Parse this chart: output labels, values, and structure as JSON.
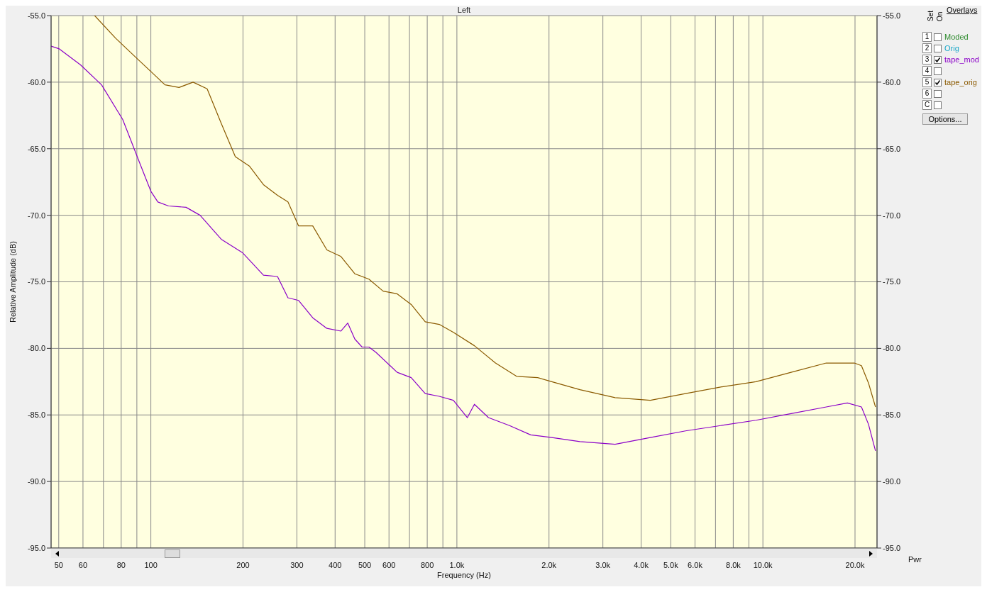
{
  "chart_data": {
    "type": "line",
    "title": "Left",
    "xlabel": "Frequency (Hz)",
    "ylabel": "Relative Amplitude (dB)",
    "log": "x",
    "grid": true,
    "legend": "right",
    "marker": "none",
    "line_style": "solid",
    "xlim": [
      47.2,
      23600
    ],
    "xticks": [
      50,
      60,
      {
        "value": 70,
        "label": null
      },
      80,
      {
        "value": 90,
        "label": null
      },
      100,
      200,
      300,
      400,
      500,
      600,
      {
        "value": 700,
        "label": null
      },
      800,
      {
        "value": 900,
        "label": null
      },
      {
        "value": 1000,
        "label": "1.0k"
      },
      {
        "value": 2000,
        "label": "2.0k"
      },
      {
        "value": 3000,
        "label": "3.0k"
      },
      {
        "value": 4000,
        "label": "4.0k"
      },
      {
        "value": 5000,
        "label": "5.0k"
      },
      {
        "value": 6000,
        "label": "6.0k"
      },
      {
        "value": 7000,
        "label": null
      },
      {
        "value": 8000,
        "label": "8.0k"
      },
      {
        "value": 9000,
        "label": null
      },
      {
        "value": 10000,
        "label": "10.0k"
      },
      {
        "value": 20000,
        "label": "20.0k"
      }
    ],
    "ylim": [
      -95,
      -55
    ],
    "yticks": [
      {
        "value": -95,
        "label": "-95.0"
      },
      {
        "value": -90,
        "label": "-90.0"
      },
      {
        "value": -85,
        "label": "-85.0"
      },
      {
        "value": -80,
        "label": "-80.0"
      },
      {
        "value": -75,
        "label": "-75.0"
      },
      {
        "value": -70,
        "label": "-70.0"
      },
      {
        "value": -65,
        "label": "-65.0"
      },
      {
        "value": -60,
        "label": "-60.0"
      },
      {
        "value": -55,
        "label": "-55.0"
      }
    ],
    "y2lim": [
      -95,
      -55
    ],
    "y2ticks": [
      {
        "value": -95,
        "label": "-95.0"
      },
      {
        "value": -90,
        "label": "-90.0"
      },
      {
        "value": -85,
        "label": "-85.0"
      },
      {
        "value": -80,
        "label": "-80.0"
      },
      {
        "value": -75,
        "label": "-75.0"
      },
      {
        "value": -70,
        "label": "-70.0"
      },
      {
        "value": -65,
        "label": "-65.0"
      },
      {
        "value": -60,
        "label": "-60.0"
      },
      {
        "value": -55,
        "label": "-55.0"
      }
    ],
    "annotations": [
      "Overlays",
      "Set",
      "On",
      "1",
      "2",
      "3",
      "4",
      "5",
      "6",
      "C",
      "Moded",
      "Orig",
      "Options...",
      "Pwr"
    ],
    "series": [
      {
        "name": "tape_mod",
        "color": "#8b00c8",
        "x": [
          47.2,
          50.2,
          58.9,
          69.0,
          80.9,
          92.4,
          100,
          105.4,
          114.2,
          130.3,
          144.8,
          169.8,
          199,
          233.3,
          259.3,
          280.5,
          304,
          338,
          376,
          418,
          440,
          464,
          490,
          516,
          544,
          605,
          638,
          709,
          788,
          876,
          974,
          1082,
          1141,
          1268,
          1486,
          1742,
          2042,
          2524,
          3289,
          4287,
          5587,
          7281,
          9490,
          12366,
          16110,
          18880,
          20990,
          22130,
          23330
        ],
        "values": [
          -57.3,
          -57.5,
          -58.7,
          -60.2,
          -62.8,
          -66.2,
          -68.2,
          -69.0,
          -69.3,
          -69.4,
          -70.0,
          -71.8,
          -72.8,
          -74.5,
          -74.6,
          -76.2,
          -76.4,
          -77.7,
          -78.5,
          -78.7,
          -78.1,
          -79.3,
          -79.9,
          -79.9,
          -80.3,
          -81.3,
          -81.8,
          -82.2,
          -83.4,
          -83.6,
          -83.9,
          -85.2,
          -84.2,
          -85.2,
          -85.8,
          -86.5,
          -86.7,
          -87.0,
          -87.2,
          -86.7,
          -86.2,
          -85.8,
          -85.4,
          -84.9,
          -84.4,
          -84.1,
          -84.4,
          -85.7,
          -87.7
        ]
      },
      {
        "name": "tape_orig",
        "color": "#8b5a00",
        "x": [
          65.5,
          76.7,
          89.9,
          100,
          111.2,
          123.6,
          137.4,
          152.7,
          169.8,
          188.8,
          209.8,
          233.3,
          259.3,
          280.5,
          304,
          338,
          376,
          418,
          464,
          516,
          574,
          638,
          709,
          788,
          876,
          974,
          1141,
          1337,
          1567,
          1837,
          2042,
          2524,
          3289,
          4287,
          5587,
          7281,
          9490,
          12366,
          16110,
          19900,
          20990,
          22130,
          23330
        ],
        "values": [
          -55.0,
          -56.7,
          -58.2,
          -59.2,
          -60.2,
          -60.4,
          -60.0,
          -60.5,
          -63.1,
          -65.6,
          -66.3,
          -67.7,
          -68.5,
          -69.0,
          -70.8,
          -70.8,
          -72.6,
          -73.1,
          -74.4,
          -74.8,
          -75.7,
          -75.9,
          -76.7,
          -78.0,
          -78.2,
          -78.8,
          -79.8,
          -81.1,
          -82.1,
          -82.2,
          -82.5,
          -83.1,
          -83.7,
          -83.9,
          -83.4,
          -82.9,
          -82.5,
          -81.8,
          -81.1,
          -81.1,
          -81.3,
          -82.6,
          -84.4
        ]
      }
    ]
  }
}
